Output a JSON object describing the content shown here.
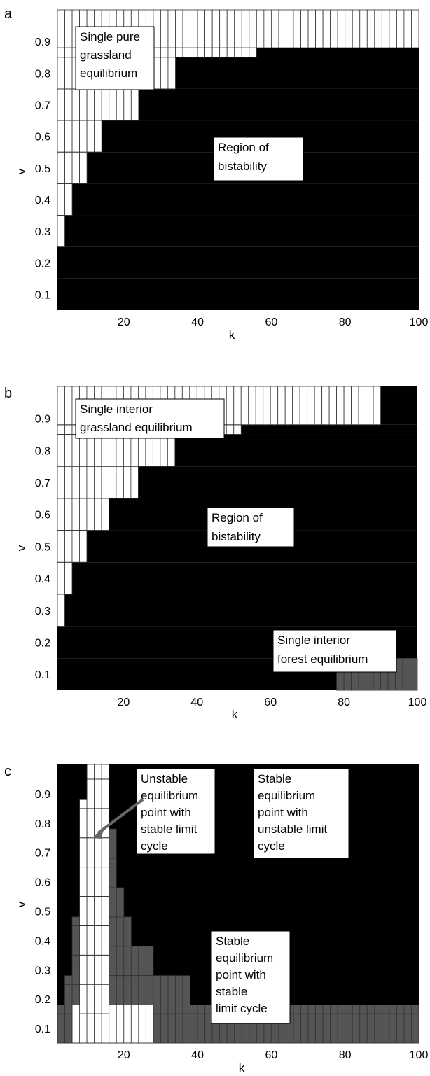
{
  "colors": {
    "bistable": "#000000",
    "single_equilibrium": "#ffffff",
    "forest_or_stable_limit_cycle": "#555555",
    "cell_border": "#333333"
  },
  "chart_data": [
    {
      "panel": "a",
      "type": "heatmap",
      "xlabel": "k",
      "ylabel": "v",
      "xlim": [
        2,
        100
      ],
      "ylim": [
        0.05,
        1.0
      ],
      "xticks": [
        "20",
        "40",
        "60",
        "80",
        "100"
      ],
      "yticks": [
        "0.1",
        "0.2",
        "0.3",
        "0.4",
        "0.5",
        "0.6",
        "0.7",
        "0.8",
        "0.9"
      ],
      "bistable_region_lower_v": [
        0.15,
        0.25,
        0.35,
        0.45,
        0.55,
        0.65,
        0.75,
        0.85
      ],
      "bistable_region_min_k": [
        2,
        4,
        6,
        10,
        14,
        24,
        34,
        56
      ],
      "regions": [
        "single-pure-grassland",
        "bistability"
      ],
      "annotations": [
        {
          "id": "pure-grassland",
          "lines": [
            "Single pure",
            "grassland",
            "equilibrium"
          ]
        },
        {
          "id": "bistability",
          "lines": [
            "Region of",
            "bistability"
          ]
        }
      ]
    },
    {
      "panel": "b",
      "type": "heatmap",
      "xlabel": "k",
      "ylabel": "v",
      "xlim": [
        2,
        100
      ],
      "ylim": [
        0.05,
        1.0
      ],
      "xticks": [
        "20",
        "40",
        "60",
        "80",
        "100"
      ],
      "yticks": [
        "0.1",
        "0.2",
        "0.3",
        "0.4",
        "0.5",
        "0.6",
        "0.7",
        "0.8",
        "0.9"
      ],
      "bistable_region_lower_v": [
        0.15,
        0.25,
        0.35,
        0.45,
        0.55,
        0.65,
        0.75,
        0.85
      ],
      "bistable_region_min_k": [
        2,
        4,
        6,
        10,
        16,
        24,
        34,
        52
      ],
      "upper_bistable_k_range": [
        90,
        100
      ],
      "forest_equilibrium_k_range": [
        78,
        100
      ],
      "regions": [
        "single-interior-grassland",
        "bistability",
        "single-interior-forest"
      ],
      "annotations": [
        {
          "id": "interior-grassland",
          "lines": [
            "Single interior",
            "grassland equilibrium"
          ]
        },
        {
          "id": "bistability",
          "lines": [
            "Region of",
            "bistability"
          ]
        },
        {
          "id": "interior-forest",
          "lines": [
            "Single interior",
            "forest equilibrium"
          ]
        }
      ]
    },
    {
      "panel": "c",
      "type": "heatmap",
      "xlabel": "k",
      "ylabel": "v",
      "xlim": [
        2,
        100
      ],
      "ylim": [
        0.05,
        1.0
      ],
      "xticks": [
        "20",
        "40",
        "60",
        "80",
        "100"
      ],
      "yticks": [
        "0.1",
        "0.2",
        "0.3",
        "0.4",
        "0.5",
        "0.6",
        "0.7",
        "0.8",
        "0.9"
      ],
      "columns": [
        {
          "k": [
            8,
            10
          ],
          "white_max_v": 0.88
        },
        {
          "k": [
            10,
            12
          ],
          "white_max_v": 1.0
        },
        {
          "k": [
            12,
            14
          ],
          "white_max_v": 1.0
        },
        {
          "k": [
            14,
            16
          ],
          "white_max_v": 1.0
        },
        {
          "k": [
            16,
            18
          ],
          "white_max_v": 0.18
        }
      ],
      "stable_limit_cycle_k_v": [
        {
          "k": [
            2,
            4
          ],
          "v": [
            0.05,
            0.18
          ]
        },
        {
          "k": [
            4,
            6
          ],
          "v": [
            0.05,
            0.28
          ]
        },
        {
          "k": [
            6,
            8
          ],
          "v": [
            0.05,
            0.48
          ]
        },
        {
          "k": [
            16,
            18
          ],
          "v": [
            0.18,
            0.78
          ]
        },
        {
          "k": [
            18,
            20
          ],
          "v": [
            0.18,
            0.58
          ]
        },
        {
          "k": [
            20,
            22
          ],
          "v": [
            0.18,
            0.48
          ]
        },
        {
          "k": [
            22,
            28
          ],
          "v": [
            0.18,
            0.38
          ]
        },
        {
          "k": [
            28,
            38
          ],
          "v": [
            0.18,
            0.28
          ]
        },
        {
          "k": [
            28,
            100
          ],
          "v": [
            0.05,
            0.18
          ]
        }
      ],
      "white_k_ranges_low_v": [
        [
          6,
          8
        ],
        [
          16,
          28
        ]
      ],
      "regions": [
        "unstable-equilibrium-stable-cycle",
        "stable-equilibrium-unstable-cycle",
        "stable-equilibrium-stable-cycle"
      ],
      "annotations": [
        {
          "id": "unstable-point",
          "lines": [
            "Unstable",
            "equilibrium",
            "point with",
            "stable limit",
            "cycle"
          ]
        },
        {
          "id": "stable-unstable-cycle",
          "lines": [
            "Stable",
            "equilibrium",
            "point with",
            "unstable limit",
            "cycle"
          ]
        },
        {
          "id": "stable-stable-cycle",
          "lines": [
            "Stable",
            "equilibrium",
            "point with",
            "stable",
            "limit cycle"
          ]
        }
      ]
    }
  ]
}
